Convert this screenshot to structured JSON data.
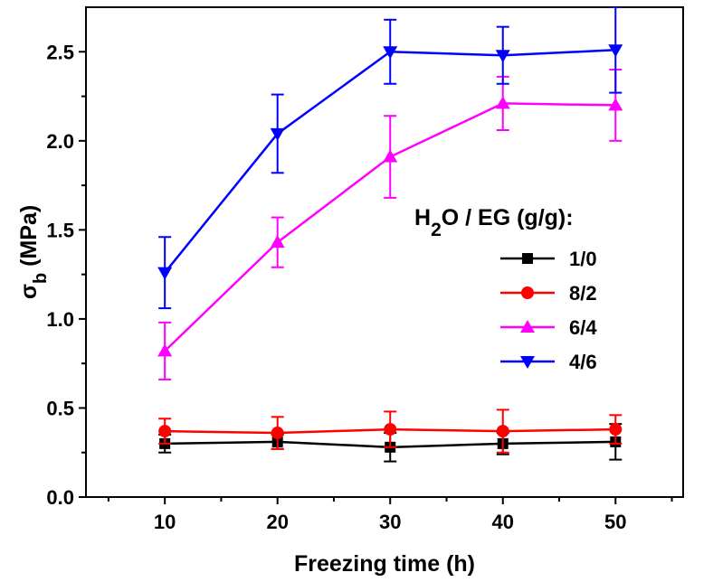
{
  "chart_data": {
    "type": "line",
    "title": "",
    "xlabel": "Freezing time (h)",
    "ylabel_main": "σ",
    "ylabel_sub": "b",
    "ylabel_unit": " (MPa)",
    "x": [
      10,
      20,
      30,
      40,
      50
    ],
    "xlim": [
      3,
      56
    ],
    "ylim": [
      0,
      2.75
    ],
    "xticks": [
      10,
      20,
      30,
      40,
      50
    ],
    "xtick_labels": [
      "10",
      "20",
      "30",
      "40",
      "50"
    ],
    "yticks": [
      0.0,
      0.5,
      1.0,
      1.5,
      2.0,
      2.5
    ],
    "ytick_labels": [
      "0.0",
      "0.5",
      "1.0",
      "1.5",
      "2.0",
      "2.5"
    ],
    "grid": false,
    "legend": {
      "title_main": "H",
      "title_sub": "2",
      "title_rest": "O / EG (g/g):",
      "placement": "center-right"
    },
    "series": [
      {
        "name": "1/0",
        "color": "#000000",
        "marker": "square",
        "values": [
          0.3,
          0.31,
          0.28,
          0.3,
          0.31
        ],
        "errors": [
          0.05,
          0.04,
          0.08,
          0.06,
          0.1
        ]
      },
      {
        "name": "8/2",
        "color": "#ff0000",
        "marker": "circle",
        "values": [
          0.37,
          0.36,
          0.38,
          0.37,
          0.38
        ],
        "errors": [
          0.07,
          0.09,
          0.1,
          0.12,
          0.08
        ]
      },
      {
        "name": "6/4",
        "color": "#ff00ff",
        "marker": "triangle-up",
        "values": [
          0.82,
          1.43,
          1.91,
          2.21,
          2.2
        ],
        "errors": [
          0.16,
          0.14,
          0.23,
          0.15,
          0.2
        ]
      },
      {
        "name": "4/6",
        "color": "#0000ff",
        "marker": "triangle-down",
        "values": [
          1.26,
          2.04,
          2.5,
          2.48,
          2.51
        ],
        "errors": [
          0.2,
          0.22,
          0.18,
          0.16,
          0.24
        ]
      }
    ]
  }
}
